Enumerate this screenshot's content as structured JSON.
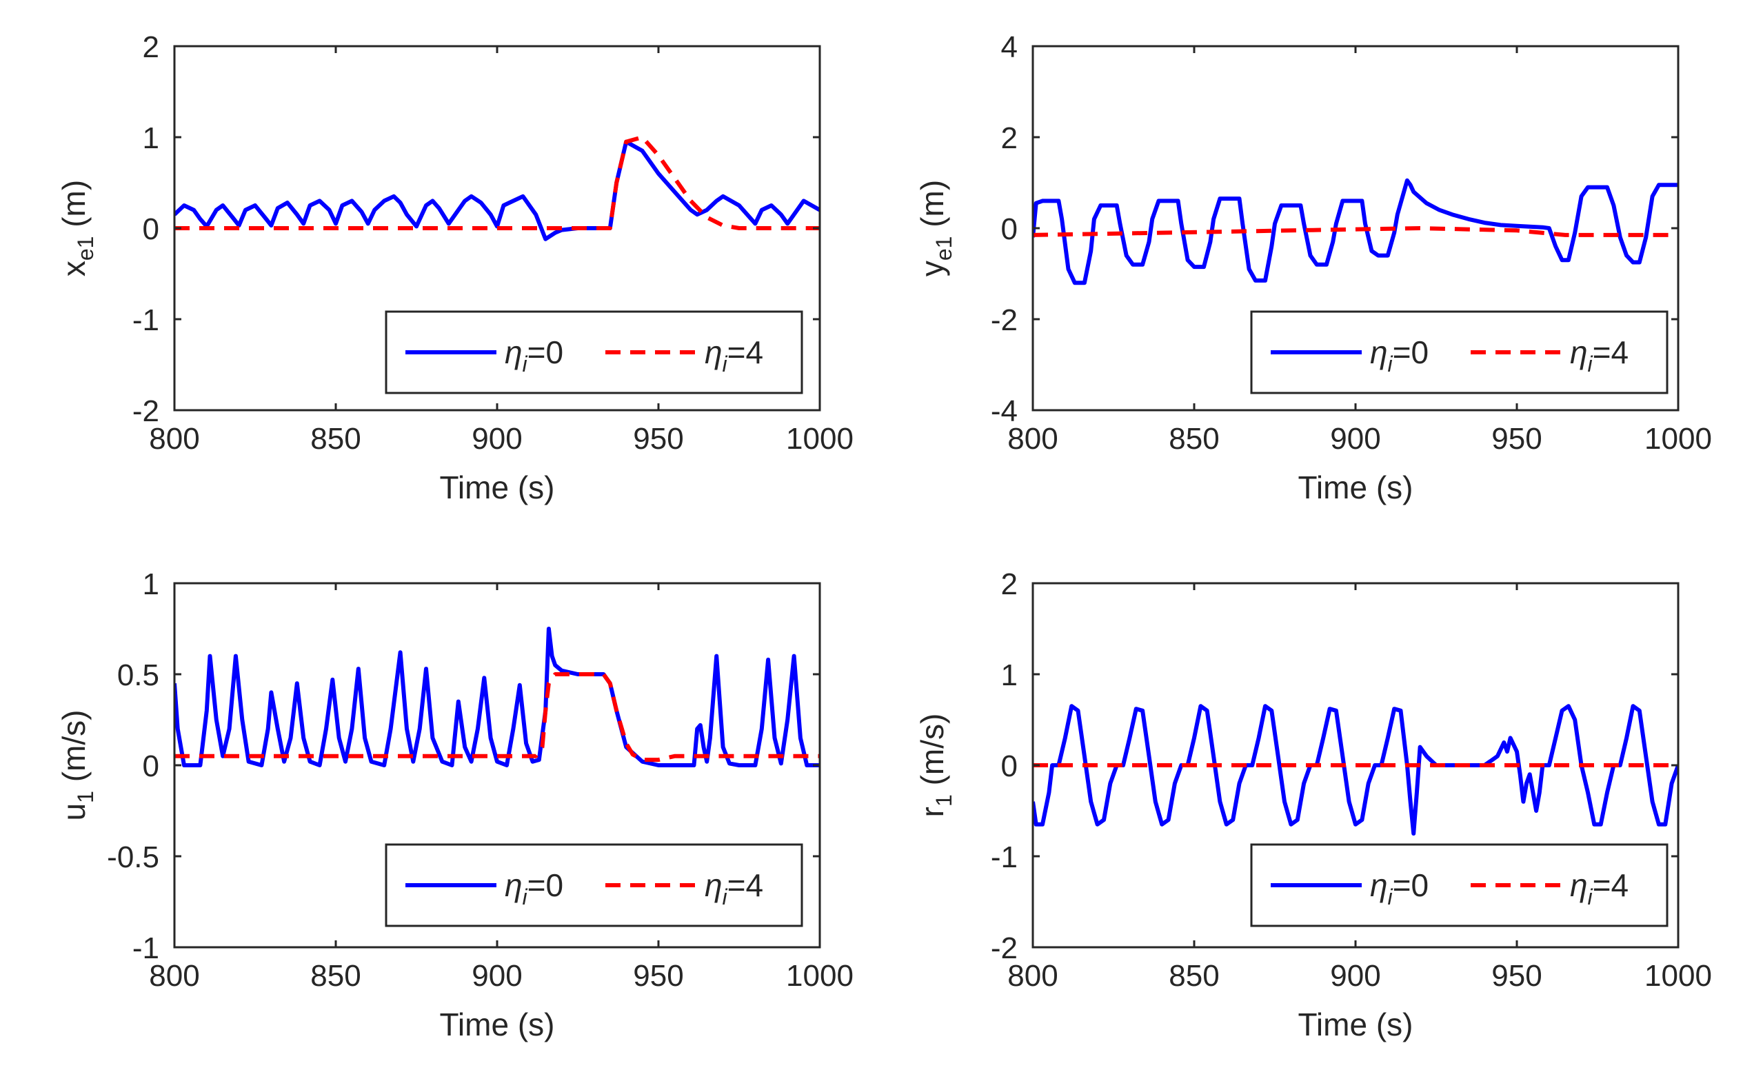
{
  "chart_data": [
    {
      "type": "line",
      "id": "xe1",
      "ylabel": {
        "main": "x",
        "sub": "e1",
        "unit": " (m)"
      },
      "xlabel": "Time (s)",
      "xlim": [
        800,
        1000
      ],
      "ylim": [
        -2,
        2
      ],
      "xticks": [
        "800",
        "850",
        "900",
        "950",
        "1000"
      ],
      "yticks": [
        "2",
        "1",
        "0",
        "-1",
        "-2"
      ],
      "series": [
        {
          "name": "η_i=0",
          "color": "#0000ff",
          "style": "solid",
          "x": [
            800,
            803,
            806,
            808,
            810,
            813,
            815,
            818,
            820,
            822,
            825,
            828,
            830,
            832,
            835,
            838,
            840,
            842,
            845,
            848,
            850,
            852,
            855,
            858,
            860,
            862,
            865,
            868,
            870,
            872,
            875,
            878,
            880,
            882,
            885,
            888,
            890,
            892,
            895,
            898,
            900,
            902,
            905,
            908,
            910,
            912,
            915,
            918,
            920,
            925,
            930,
            935,
            937,
            940,
            945,
            950,
            955,
            960,
            962,
            965,
            968,
            970,
            975,
            980,
            982,
            985,
            988,
            990,
            995,
            1000
          ],
          "y": [
            0.15,
            0.25,
            0.2,
            0.1,
            0.02,
            0.2,
            0.25,
            0.12,
            0.03,
            0.2,
            0.25,
            0.12,
            0.03,
            0.22,
            0.28,
            0.15,
            0.05,
            0.25,
            0.3,
            0.2,
            0.05,
            0.25,
            0.3,
            0.18,
            0.05,
            0.2,
            0.3,
            0.35,
            0.28,
            0.15,
            0.02,
            0.25,
            0.3,
            0.22,
            0.05,
            0.2,
            0.3,
            0.35,
            0.28,
            0.15,
            0.02,
            0.25,
            0.3,
            0.35,
            0.25,
            0.15,
            -0.12,
            -0.05,
            -0.02,
            0.0,
            0.0,
            0.0,
            0.5,
            0.95,
            0.85,
            0.6,
            0.4,
            0.2,
            0.15,
            0.2,
            0.3,
            0.35,
            0.25,
            0.05,
            0.2,
            0.25,
            0.15,
            0.05,
            0.3,
            0.2
          ]
        },
        {
          "name": "η_i=4",
          "color": "#ff0000",
          "style": "dashed",
          "x": [
            800,
            935,
            937,
            940,
            945,
            950,
            955,
            960,
            965,
            970,
            975,
            980,
            1000
          ],
          "y": [
            0,
            0,
            0.5,
            0.95,
            1.0,
            0.8,
            0.55,
            0.3,
            0.12,
            0.03,
            0,
            0,
            0
          ]
        }
      ],
      "legend": [
        "η",
        "i",
        "=0",
        "η",
        "i",
        "=4"
      ]
    },
    {
      "type": "line",
      "id": "ye1",
      "ylabel": {
        "main": "y",
        "sub": "e1",
        "unit": " (m)"
      },
      "xlabel": "Time (s)",
      "xlim": [
        800,
        1000
      ],
      "ylim": [
        -4,
        4
      ],
      "xticks": [
        "800",
        "850",
        "900",
        "950",
        "1000"
      ],
      "yticks": [
        "4",
        "2",
        "0",
        "-2",
        "-4"
      ],
      "series": [
        {
          "name": "η_i=0",
          "color": "#0000ff",
          "style": "solid",
          "x": [
            800,
            801,
            803,
            808,
            809,
            811,
            813,
            816,
            818,
            819,
            821,
            826,
            827,
            829,
            831,
            834,
            836,
            837,
            839,
            845,
            846,
            848,
            850,
            853,
            855,
            856,
            858,
            864,
            865,
            867,
            869,
            872,
            874,
            875,
            877,
            883,
            884,
            886,
            888,
            891,
            893,
            894,
            896,
            902,
            903,
            905,
            907,
            910,
            912,
            913,
            915,
            916,
            917,
            918,
            922,
            926,
            930,
            935,
            940,
            945,
            950,
            955,
            958,
            960,
            962,
            964,
            966,
            968,
            970,
            972,
            974,
            978,
            980,
            982,
            984,
            986,
            988,
            990,
            992,
            994,
            996,
            1000
          ],
          "y": [
            -0.2,
            0.55,
            0.6,
            0.6,
            0.2,
            -0.9,
            -1.2,
            -1.2,
            -0.5,
            0.2,
            0.5,
            0.5,
            0.1,
            -0.6,
            -0.8,
            -0.8,
            -0.3,
            0.2,
            0.6,
            0.6,
            0.1,
            -0.7,
            -0.85,
            -0.85,
            -0.3,
            0.2,
            0.65,
            0.65,
            0.1,
            -0.9,
            -1.15,
            -1.15,
            -0.4,
            0.1,
            0.5,
            0.5,
            0.1,
            -0.6,
            -0.8,
            -0.8,
            -0.3,
            0.1,
            0.6,
            0.6,
            0.1,
            -0.5,
            -0.6,
            -0.6,
            -0.1,
            0.3,
            0.8,
            1.05,
            0.95,
            0.8,
            0.55,
            0.4,
            0.3,
            0.2,
            0.12,
            0.07,
            0.05,
            0.03,
            0.02,
            0.0,
            -0.4,
            -0.7,
            -0.7,
            -0.1,
            0.7,
            0.9,
            0.9,
            0.9,
            0.5,
            -0.2,
            -0.6,
            -0.75,
            -0.75,
            -0.2,
            0.7,
            0.95,
            0.95,
            0.95
          ]
        },
        {
          "name": "η_i=4",
          "color": "#ff0000",
          "style": "dashed",
          "x": [
            800,
            920,
            950,
            965,
            1000
          ],
          "y": [
            -0.15,
            0.0,
            -0.05,
            -0.15,
            -0.15
          ]
        }
      ],
      "legend": [
        "η",
        "i",
        "=0",
        "η",
        "i",
        "=4"
      ]
    },
    {
      "type": "line",
      "id": "u1",
      "ylabel": {
        "main": "u",
        "sub": "1",
        "unit": " (m/s)"
      },
      "xlabel": "Time (s)",
      "xlim": [
        800,
        1000
      ],
      "ylim": [
        -1,
        1
      ],
      "xticks": [
        "800",
        "850",
        "900",
        "950",
        "1000"
      ],
      "yticks": [
        "1",
        "0.5",
        "0",
        "-0.5",
        "-1"
      ],
      "series": [
        {
          "name": "η_i=0",
          "color": "#0000ff",
          "style": "solid",
          "x": [
            800,
            801,
            803,
            806,
            808,
            810,
            811,
            813,
            815,
            817,
            819,
            821,
            823,
            827,
            829,
            830,
            832,
            834,
            836,
            838,
            840,
            842,
            845,
            847,
            849,
            851,
            853,
            855,
            857,
            859,
            861,
            865,
            867,
            870,
            872,
            874,
            876,
            878,
            880,
            883,
            886,
            888,
            890,
            892,
            894,
            896,
            898,
            900,
            903,
            905,
            907,
            909,
            911,
            913,
            915,
            916,
            917,
            918,
            920,
            925,
            930,
            933,
            935,
            937,
            940,
            945,
            950,
            955,
            960,
            961,
            962,
            963,
            964,
            965,
            966,
            968,
            970,
            972,
            975,
            980,
            982,
            984,
            986,
            988,
            990,
            992,
            994,
            996,
            1000
          ],
          "y": [
            0.45,
            0.2,
            0.0,
            0.0,
            0.0,
            0.3,
            0.6,
            0.25,
            0.05,
            0.2,
            0.6,
            0.25,
            0.02,
            0.0,
            0.2,
            0.4,
            0.2,
            0.02,
            0.15,
            0.45,
            0.15,
            0.02,
            0.0,
            0.2,
            0.47,
            0.15,
            0.02,
            0.2,
            0.53,
            0.15,
            0.02,
            0.0,
            0.2,
            0.62,
            0.2,
            0.02,
            0.2,
            0.53,
            0.15,
            0.02,
            0.0,
            0.35,
            0.1,
            0.02,
            0.2,
            0.48,
            0.15,
            0.02,
            0.0,
            0.2,
            0.44,
            0.12,
            0.02,
            0.03,
            0.3,
            0.75,
            0.6,
            0.55,
            0.52,
            0.5,
            0.5,
            0.5,
            0.45,
            0.3,
            0.1,
            0.02,
            0.0,
            0.0,
            0.0,
            0.0,
            0.2,
            0.22,
            0.1,
            0.02,
            0.15,
            0.6,
            0.1,
            0.01,
            0.0,
            0.0,
            0.2,
            0.58,
            0.15,
            0.01,
            0.25,
            0.6,
            0.15,
            0.0,
            0.0
          ]
        },
        {
          "name": "η_i=4",
          "color": "#ff0000",
          "style": "dashed",
          "x": [
            800,
            912,
            914,
            915,
            916,
            918,
            920,
            925,
            930,
            933,
            935,
            937,
            940,
            942,
            945,
            950,
            955,
            1000
          ],
          "y": [
            0.05,
            0.05,
            0.1,
            0.3,
            0.45,
            0.5,
            0.5,
            0.5,
            0.5,
            0.5,
            0.45,
            0.3,
            0.12,
            0.06,
            0.03,
            0.03,
            0.05,
            0.05
          ]
        }
      ],
      "legend": [
        "η",
        "i",
        "=0",
        "η",
        "i",
        "=4"
      ]
    },
    {
      "type": "line",
      "id": "r1",
      "ylabel": {
        "main": "r",
        "sub": "1",
        "unit": " (m/s)"
      },
      "xlabel": "Time (s)",
      "xlim": [
        800,
        1000
      ],
      "ylim": [
        -2,
        2
      ],
      "xticks": [
        "800",
        "850",
        "900",
        "950",
        "1000"
      ],
      "yticks": [
        "2",
        "1",
        "0",
        "-1",
        "-2"
      ],
      "series": [
        {
          "name": "η_i=0",
          "color": "#0000ff",
          "style": "solid",
          "x": [
            800,
            801,
            803,
            805,
            806,
            808,
            810,
            812,
            814,
            816,
            818,
            820,
            822,
            824,
            826,
            828,
            830,
            832,
            834,
            836,
            838,
            840,
            842,
            844,
            846,
            848,
            850,
            852,
            854,
            856,
            858,
            860,
            862,
            864,
            866,
            868,
            870,
            872,
            874,
            876,
            878,
            880,
            882,
            884,
            886,
            888,
            890,
            892,
            894,
            896,
            898,
            900,
            902,
            904,
            906,
            908,
            910,
            912,
            914,
            916,
            917,
            918,
            919,
            920,
            922,
            925,
            930,
            935,
            940,
            942,
            944,
            946,
            947,
            948,
            950,
            951,
            952,
            953,
            954,
            955,
            956,
            957,
            958,
            960,
            962,
            964,
            966,
            968,
            970,
            972,
            974,
            976,
            978,
            980,
            982,
            984,
            986,
            988,
            990,
            992,
            994,
            996,
            998,
            1000
          ],
          "y": [
            -0.4,
            -0.65,
            -0.65,
            -0.3,
            0.0,
            0.0,
            0.3,
            0.65,
            0.6,
            0.1,
            -0.4,
            -0.65,
            -0.6,
            -0.2,
            0.0,
            0.0,
            0.3,
            0.62,
            0.6,
            0.1,
            -0.4,
            -0.65,
            -0.6,
            -0.2,
            0.0,
            0.0,
            0.3,
            0.65,
            0.6,
            0.1,
            -0.4,
            -0.65,
            -0.6,
            -0.2,
            0.0,
            0.0,
            0.3,
            0.65,
            0.6,
            0.1,
            -0.4,
            -0.65,
            -0.6,
            -0.2,
            0.0,
            0.0,
            0.3,
            0.62,
            0.6,
            0.1,
            -0.4,
            -0.65,
            -0.6,
            -0.2,
            0.0,
            0.0,
            0.3,
            0.62,
            0.6,
            0.0,
            -0.4,
            -0.75,
            -0.3,
            0.2,
            0.1,
            0.0,
            0.0,
            0.0,
            0.0,
            0.05,
            0.1,
            0.25,
            0.15,
            0.3,
            0.15,
            -0.1,
            -0.4,
            -0.2,
            -0.1,
            -0.3,
            -0.5,
            -0.3,
            0.0,
            0.0,
            0.3,
            0.6,
            0.65,
            0.5,
            0.0,
            -0.3,
            -0.65,
            -0.65,
            -0.3,
            0.0,
            0.0,
            0.3,
            0.65,
            0.6,
            0.1,
            -0.4,
            -0.65,
            -0.65,
            -0.2,
            0.0
          ]
        },
        {
          "name": "η_i=4",
          "color": "#ff0000",
          "style": "dashed",
          "x": [
            800,
            1000
          ],
          "y": [
            0,
            0
          ]
        }
      ],
      "legend": [
        "η",
        "i",
        "=0",
        "η",
        "i",
        "=4"
      ]
    }
  ]
}
